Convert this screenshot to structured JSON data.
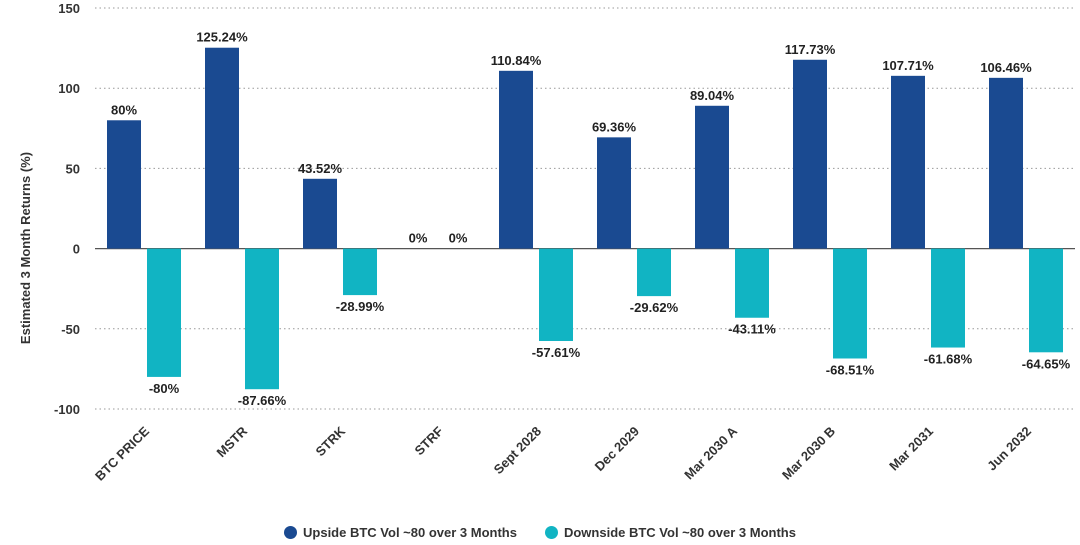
{
  "chart_data": {
    "type": "bar",
    "ylabel": "Estimated 3 Month Returns (%)",
    "ylim": [
      -100,
      150
    ],
    "yticks": [
      -100,
      -50,
      0,
      50,
      100,
      150
    ],
    "grid": true,
    "legend_position": "bottom",
    "categories": [
      "BTC PRICE",
      "MSTR",
      "STRK",
      "STRF",
      "Sept 2028",
      "Dec 2029",
      "Mar 2030 A",
      "Mar 2030 B",
      "Mar 2031",
      "Jun 2032"
    ],
    "series": [
      {
        "name": "Upside BTC Vol ~80 over 3 Months",
        "color": "#1a4a91",
        "values": [
          80,
          125.24,
          43.52,
          0,
          110.84,
          69.36,
          89.04,
          117.73,
          107.71,
          106.46
        ],
        "labels": [
          "80%",
          "125.24%",
          "43.52%",
          "0%",
          "110.84%",
          "69.36%",
          "89.04%",
          "117.73%",
          "107.71%",
          "106.46%"
        ]
      },
      {
        "name": "Downside BTC Vol ~80 over 3 Months",
        "color": "#11b4c3",
        "values": [
          -80,
          -87.66,
          -28.99,
          0,
          -57.61,
          -29.62,
          -43.11,
          -68.51,
          -61.68,
          -64.65
        ],
        "labels": [
          "-80%",
          "-87.66%",
          "-28.99%",
          "0%",
          "-57.61%",
          "-29.62%",
          "-43.11%",
          "-68.51%",
          "-61.68%",
          "-64.65%"
        ]
      }
    ]
  }
}
